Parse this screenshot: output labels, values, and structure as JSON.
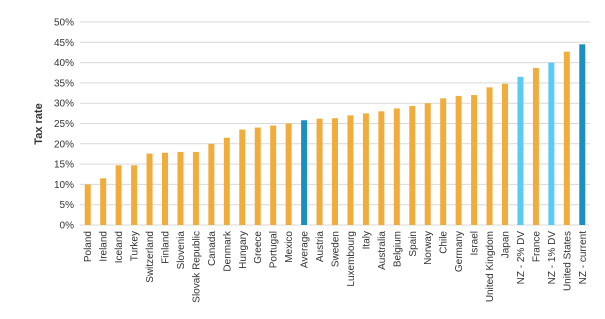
{
  "chart_data": {
    "type": "bar",
    "y_label": "Tax rate",
    "categories": [
      "Poland",
      "Ireland",
      "Iceland",
      "Turkey",
      "Switzerland",
      "Finland",
      "Slovenia",
      "Slovak Republic",
      "Canada",
      "Denmark",
      "Hungary",
      "Greece",
      "Portugal",
      "Mexico",
      "Average",
      "Austria",
      "Sweden",
      "Luxembourg",
      "Italy",
      "Australia",
      "Belgium",
      "Spain",
      "Norway",
      "Chile",
      "Germany",
      "Israel",
      "United Kingdom",
      "Japan",
      "NZ - 2% DV",
      "France",
      "NZ - 1% DV",
      "United States",
      "NZ - current"
    ],
    "values": [
      10,
      11.5,
      14.7,
      14.7,
      17.6,
      17.8,
      18,
      18,
      20,
      21.5,
      23.5,
      24,
      24.5,
      25,
      25.8,
      26.2,
      26.3,
      27,
      27.5,
      28,
      28.7,
      29.3,
      30,
      31.2,
      31.8,
      32,
      33.9,
      34.8,
      36.5,
      38.7,
      40,
      42.7,
      44.5
    ],
    "colors": [
      "#f0ad3c",
      "#f0ad3c",
      "#f0ad3c",
      "#f0ad3c",
      "#f0ad3c",
      "#f0ad3c",
      "#f0ad3c",
      "#f0ad3c",
      "#f0ad3c",
      "#f0ad3c",
      "#f0ad3c",
      "#f0ad3c",
      "#f0ad3c",
      "#f0ad3c",
      "#1b8fbf",
      "#f0ad3c",
      "#f0ad3c",
      "#f0ad3c",
      "#f0ad3c",
      "#f0ad3c",
      "#f0ad3c",
      "#f0ad3c",
      "#f0ad3c",
      "#f0ad3c",
      "#f0ad3c",
      "#f0ad3c",
      "#f0ad3c",
      "#f0ad3c",
      "#5bcbf3",
      "#f0ad3c",
      "#5bcbf3",
      "#f0ad3c",
      "#1b8fbf"
    ],
    "ylim": [
      0,
      50
    ],
    "yticks": [
      {
        "value": 0,
        "label": "0%"
      },
      {
        "value": 5,
        "label": "5%"
      },
      {
        "value": 10,
        "label": "10%"
      },
      {
        "value": 15,
        "label": "15%"
      },
      {
        "value": 20,
        "label": "20%"
      },
      {
        "value": 25,
        "label": "25%"
      },
      {
        "value": 30,
        "label": "30%"
      },
      {
        "value": 35,
        "label": "35%"
      },
      {
        "value": 40,
        "label": "40%"
      },
      {
        "value": 45,
        "label": "45%"
      },
      {
        "value": 50,
        "label": "50%"
      }
    ],
    "grid": true
  }
}
